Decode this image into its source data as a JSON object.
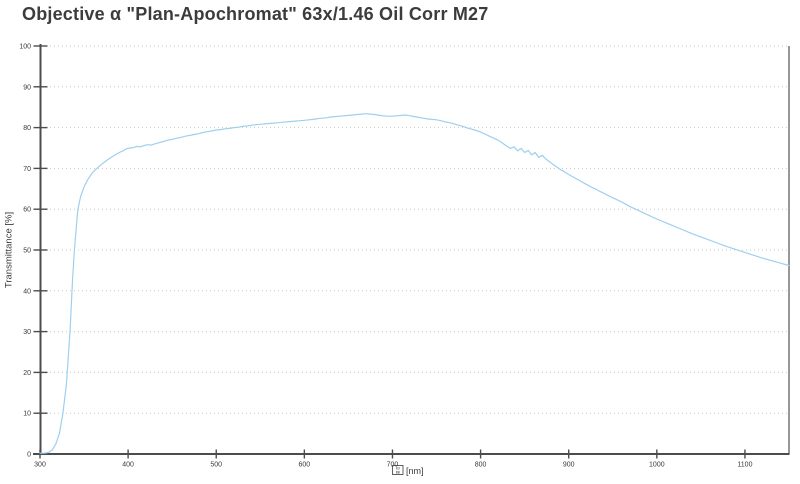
{
  "page": {
    "title": "Objective α \"Plan-Apochromat\" 63x/1.46 Oil Corr M27"
  },
  "colors": {
    "curve": "#9fcfee",
    "axis": "#4c4c4c",
    "gridline": "#c9c9c9",
    "right_frame": "#7d7d7d",
    "title_text": "#3c3c3c",
    "background": "#ffffff"
  },
  "chart_data": {
    "type": "line",
    "title": "Objective α \"Plan-Apochromat\" 63x/1.46 Oil Corr M27",
    "xlabel": "λ [nm]",
    "xlabel_symbol": "λ",
    "xlabel_symbol_render": "missing-glyph-box",
    "xlabel_glyph_hex": [
      "03",
      "BB"
    ],
    "xlabel_unit": "[nm]",
    "ylabel": "Transmittance [%]",
    "xlim": [
      300,
      1150
    ],
    "ylim": [
      0,
      100
    ],
    "x_ticks": [
      300,
      400,
      500,
      600,
      700,
      800,
      900,
      1000,
      1100
    ],
    "y_ticks": [
      0,
      10,
      20,
      30,
      40,
      50,
      60,
      70,
      80,
      90,
      100
    ],
    "grid": "horizontal dotted",
    "legend": "none",
    "series": [
      {
        "name": "Transmittance",
        "color": "#9fcfee",
        "points": [
          [
            300,
            0.2
          ],
          [
            305,
            0.2
          ],
          [
            310,
            0.4
          ],
          [
            314,
            1
          ],
          [
            318,
            2.5
          ],
          [
            322,
            5
          ],
          [
            326,
            10
          ],
          [
            330,
            17
          ],
          [
            334,
            30
          ],
          [
            337,
            43
          ],
          [
            339,
            50
          ],
          [
            341,
            55
          ],
          [
            343,
            60
          ],
          [
            346,
            63
          ],
          [
            350,
            65.5
          ],
          [
            354,
            67.2
          ],
          [
            358,
            68.5
          ],
          [
            362,
            69.5
          ],
          [
            366,
            70.3
          ],
          [
            370,
            71
          ],
          [
            374,
            71.7
          ],
          [
            378,
            72.3
          ],
          [
            382,
            72.9
          ],
          [
            386,
            73.4
          ],
          [
            390,
            73.9
          ],
          [
            394,
            74.3
          ],
          [
            398,
            74.8
          ],
          [
            402,
            75
          ],
          [
            406,
            75.1
          ],
          [
            410,
            75.4
          ],
          [
            414,
            75.3
          ],
          [
            418,
            75.6
          ],
          [
            422,
            75.8
          ],
          [
            426,
            75.7
          ],
          [
            430,
            76
          ],
          [
            435,
            76.3
          ],
          [
            440,
            76.6
          ],
          [
            445,
            76.9
          ],
          [
            450,
            77.1
          ],
          [
            455,
            77.4
          ],
          [
            460,
            77.6
          ],
          [
            465,
            77.9
          ],
          [
            470,
            78.1
          ],
          [
            475,
            78.3
          ],
          [
            480,
            78.5
          ],
          [
            485,
            78.8
          ],
          [
            490,
            79
          ],
          [
            495,
            79.2
          ],
          [
            500,
            79.4
          ],
          [
            505,
            79.5
          ],
          [
            510,
            79.7
          ],
          [
            515,
            79.8
          ],
          [
            520,
            80
          ],
          [
            525,
            80.1
          ],
          [
            530,
            80.3
          ],
          [
            535,
            80.4
          ],
          [
            540,
            80.6
          ],
          [
            545,
            80.7
          ],
          [
            550,
            80.8
          ],
          [
            555,
            80.9
          ],
          [
            560,
            81
          ],
          [
            565,
            81.1
          ],
          [
            570,
            81.2
          ],
          [
            575,
            81.3
          ],
          [
            580,
            81.4
          ],
          [
            585,
            81.5
          ],
          [
            590,
            81.6
          ],
          [
            595,
            81.7
          ],
          [
            600,
            81.8
          ],
          [
            605,
            81.9
          ],
          [
            610,
            82
          ],
          [
            615,
            82.2
          ],
          [
            620,
            82.3
          ],
          [
            625,
            82.4
          ],
          [
            630,
            82.6
          ],
          [
            635,
            82.7
          ],
          [
            640,
            82.8
          ],
          [
            645,
            82.9
          ],
          [
            650,
            83
          ],
          [
            655,
            83.1
          ],
          [
            660,
            83.2
          ],
          [
            665,
            83.3
          ],
          [
            670,
            83.4
          ],
          [
            675,
            83.3
          ],
          [
            680,
            83.2
          ],
          [
            685,
            83
          ],
          [
            690,
            82.9
          ],
          [
            695,
            82.8
          ],
          [
            700,
            82.8
          ],
          [
            705,
            82.9
          ],
          [
            710,
            83
          ],
          [
            715,
            83.1
          ],
          [
            720,
            82.9
          ],
          [
            725,
            82.7
          ],
          [
            730,
            82.5
          ],
          [
            735,
            82.3
          ],
          [
            740,
            82.1
          ],
          [
            745,
            82
          ],
          [
            750,
            81.9
          ],
          [
            755,
            81.7
          ],
          [
            760,
            81.4
          ],
          [
            765,
            81.2
          ],
          [
            770,
            80.9
          ],
          [
            775,
            80.6
          ],
          [
            780,
            80.3
          ],
          [
            785,
            79.9
          ],
          [
            790,
            79.6
          ],
          [
            795,
            79.3
          ],
          [
            800,
            78.9
          ],
          [
            805,
            78.4
          ],
          [
            810,
            77.9
          ],
          [
            815,
            77.4
          ],
          [
            820,
            76.9
          ],
          [
            825,
            76.2
          ],
          [
            830,
            75.4
          ],
          [
            834,
            74.9
          ],
          [
            838,
            75.3
          ],
          [
            842,
            74.3
          ],
          [
            846,
            74.9
          ],
          [
            850,
            73.9
          ],
          [
            854,
            74.4
          ],
          [
            858,
            73.3
          ],
          [
            862,
            73.9
          ],
          [
            866,
            72.7
          ],
          [
            870,
            73.2
          ],
          [
            874,
            72.3
          ],
          [
            878,
            71.7
          ],
          [
            882,
            71
          ],
          [
            886,
            70.4
          ],
          [
            890,
            69.8
          ],
          [
            895,
            69.2
          ],
          [
            900,
            68.5
          ],
          [
            905,
            67.9
          ],
          [
            910,
            67.3
          ],
          [
            915,
            66.7
          ],
          [
            920,
            66.1
          ],
          [
            925,
            65.5
          ],
          [
            930,
            65
          ],
          [
            935,
            64.4
          ],
          [
            940,
            63.9
          ],
          [
            945,
            63.3
          ],
          [
            950,
            62.8
          ],
          [
            955,
            62.3
          ],
          [
            960,
            61.8
          ],
          [
            965,
            61.2
          ],
          [
            970,
            60.6
          ],
          [
            975,
            60.1
          ],
          [
            980,
            59.6
          ],
          [
            985,
            59.1
          ],
          [
            990,
            58.6
          ],
          [
            995,
            58.1
          ],
          [
            1000,
            57.6
          ],
          [
            1010,
            56.7
          ],
          [
            1020,
            55.8
          ],
          [
            1030,
            54.9
          ],
          [
            1040,
            54
          ],
          [
            1050,
            53.2
          ],
          [
            1060,
            52.4
          ],
          [
            1070,
            51.6
          ],
          [
            1080,
            50.8
          ],
          [
            1090,
            50.1
          ],
          [
            1100,
            49.4
          ],
          [
            1110,
            48.7
          ],
          [
            1120,
            48
          ],
          [
            1130,
            47.4
          ],
          [
            1140,
            46.8
          ],
          [
            1150,
            46.2
          ]
        ]
      }
    ]
  }
}
